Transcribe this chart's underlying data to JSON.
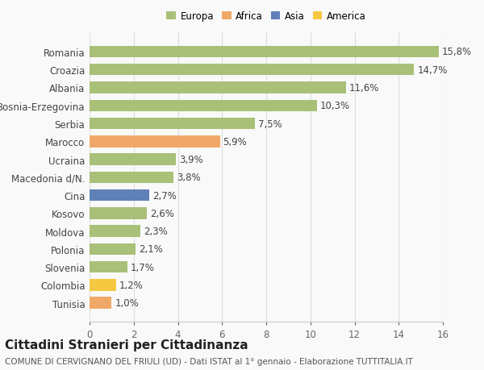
{
  "categories": [
    "Tunisia",
    "Colombia",
    "Slovenia",
    "Polonia",
    "Moldova",
    "Kosovo",
    "Cina",
    "Macedonia d/N.",
    "Ucraina",
    "Marocco",
    "Serbia",
    "Bosnia-Erzegovina",
    "Albania",
    "Croazia",
    "Romania"
  ],
  "values": [
    1.0,
    1.2,
    1.7,
    2.1,
    2.3,
    2.6,
    2.7,
    3.8,
    3.9,
    5.9,
    7.5,
    10.3,
    11.6,
    14.7,
    15.8
  ],
  "labels": [
    "1,0%",
    "1,2%",
    "1,7%",
    "2,1%",
    "2,3%",
    "2,6%",
    "2,7%",
    "3,8%",
    "3,9%",
    "5,9%",
    "7,5%",
    "10,3%",
    "11,6%",
    "14,7%",
    "15,8%"
  ],
  "colors": [
    "#f0a868",
    "#f5c842",
    "#a8c078",
    "#a8c078",
    "#a8c078",
    "#a8c078",
    "#6080b8",
    "#a8c078",
    "#a8c078",
    "#f0a868",
    "#a8c078",
    "#a8c078",
    "#a8c078",
    "#a8c078",
    "#a8c078"
  ],
  "legend_labels": [
    "Europa",
    "Africa",
    "Asia",
    "America"
  ],
  "legend_colors": [
    "#a8c078",
    "#f0a868",
    "#6080b8",
    "#f5c842"
  ],
  "title": "Cittadini Stranieri per Cittadinanza",
  "subtitle": "COMUNE DI CERVIGNANO DEL FRIULI (UD) - Dati ISTAT al 1° gennaio - Elaborazione TUTTITALIA.IT",
  "xlim": [
    0,
    16
  ],
  "xticks": [
    0,
    2,
    4,
    6,
    8,
    10,
    12,
    14,
    16
  ],
  "background_color": "#f9f9f9",
  "bar_height": 0.65,
  "label_fontsize": 8.5,
  "tick_fontsize": 8.5,
  "title_fontsize": 11,
  "subtitle_fontsize": 7.5
}
